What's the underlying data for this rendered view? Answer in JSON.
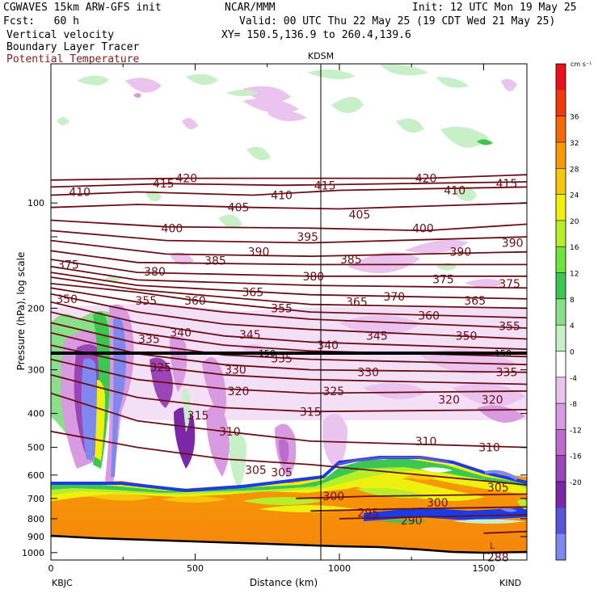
{
  "header": {
    "model": "CGWAVES 15km ARW-GFS init",
    "org": "NCAR/MMM",
    "init": "Init: 12 UTC Mon 19 May 25",
    "fcst": "Fcst:   60 h",
    "valid": "Valid: 00 UTC Thu 22 May 25 (19 CDT Wed 21 May 25)",
    "field1": "Vertical velocity",
    "field2": "Boundary Layer Tracer",
    "field3": "Potential Temperature",
    "xy": "XY= 150.5,136.9 to 260.4,139.6"
  },
  "colors": {
    "theta": "#6b0f16",
    "field3_text": "#8b1a1a",
    "tropopause": "#000000",
    "terrain": "#000000"
  },
  "chart_data": {
    "type": "heatmap",
    "xlabel": "Distance (km)",
    "ylabel": "Pressure (hPa), log scale",
    "xlim": [
      0,
      1650
    ],
    "ylim": [
      1050,
      40
    ],
    "y_scale": "log",
    "x_ticks": [
      {
        "v": 0,
        "label": "0"
      },
      {
        "v": 500,
        "label": "500"
      },
      {
        "v": 1000,
        "label": "1000"
      },
      {
        "v": 1500,
        "label": "1500"
      }
    ],
    "y_ticks": [
      {
        "v": 100,
        "label": "100"
      },
      {
        "v": 200,
        "label": "200"
      },
      {
        "v": 300,
        "label": "300"
      },
      {
        "v": 400,
        "label": "400"
      },
      {
        "v": 500,
        "label": "500"
      },
      {
        "v": 600,
        "label": "600"
      },
      {
        "v": 700,
        "label": "700"
      },
      {
        "v": 800,
        "label": "800"
      },
      {
        "v": 900,
        "label": "900"
      },
      {
        "v": 1000,
        "label": "1000"
      }
    ],
    "stations": {
      "left": "KBJC",
      "right": "KIND",
      "marker": "KDSM",
      "marker_x": 930
    },
    "colorbar": {
      "unit": "cm s⁻¹",
      "labels": [
        "36",
        "32",
        "28",
        "24",
        "20",
        "16",
        "12",
        "8",
        "4",
        "0",
        "-4",
        "-8",
        "-12",
        "-16",
        "-20"
      ],
      "colors": [
        "#e8101a",
        "#f23a0c",
        "#f56a08",
        "#f79a08",
        "#f7c60a",
        "#eef00e",
        "#b6ee2a",
        "#6fe43c",
        "#3cc850",
        "#8ae08a",
        "#c8f0c8",
        "#ffffff",
        "#eac4ee",
        "#d89ae0",
        "#bb6ccc",
        "#9a45b8",
        "#7a28a8",
        "#5a55d8",
        "#7e88ee"
      ]
    },
    "tropopause_labels": [
      "150",
      "150"
    ],
    "theta_contours": [
      {
        "label": "410",
        "pts": [
          [
            0,
            95
          ],
          [
            300,
            93
          ],
          [
            700,
            95
          ],
          [
            1000,
            92
          ],
          [
            1650,
            90
          ]
        ]
      },
      {
        "label": "415",
        "pts": [
          [
            0,
            90
          ],
          [
            400,
            88
          ],
          [
            800,
            89
          ],
          [
            1650,
            87
          ]
        ]
      },
      {
        "label": "420",
        "pts": [
          [
            0,
            86
          ],
          [
            450,
            85
          ],
          [
            1300,
            85
          ],
          [
            1650,
            83
          ]
        ]
      },
      {
        "label": "405",
        "pts": [
          [
            0,
            103
          ],
          [
            300,
            101
          ],
          [
            700,
            103
          ],
          [
            1000,
            104
          ],
          [
            1650,
            100
          ]
        ]
      },
      {
        "label": "400",
        "pts": [
          [
            0,
            112
          ],
          [
            400,
            117
          ],
          [
            900,
            118
          ],
          [
            1300,
            120
          ],
          [
            1650,
            115
          ]
        ]
      },
      {
        "label": "395",
        "pts": [
          [
            0,
            120
          ],
          [
            400,
            128
          ],
          [
            900,
            130
          ],
          [
            1650,
            125
          ]
        ]
      },
      {
        "label": "390",
        "pts": [
          [
            0,
            128
          ],
          [
            400,
            140
          ],
          [
            900,
            142
          ],
          [
            1650,
            138
          ]
        ]
      },
      {
        "label": "385",
        "pts": [
          [
            0,
            137
          ],
          [
            300,
            148
          ],
          [
            900,
            150
          ],
          [
            1650,
            150
          ]
        ]
      },
      {
        "label": "380",
        "pts": [
          [
            0,
            145
          ],
          [
            300,
            158
          ],
          [
            900,
            162
          ],
          [
            1650,
            162
          ]
        ]
      },
      {
        "label": "375",
        "pts": [
          [
            0,
            152
          ],
          [
            300,
            166
          ],
          [
            900,
            172
          ],
          [
            1650,
            175
          ]
        ]
      },
      {
        "label": "370",
        "pts": [
          [
            0,
            158
          ],
          [
            300,
            172
          ],
          [
            900,
            183
          ],
          [
            1650,
            188
          ]
        ]
      },
      {
        "label": "365",
        "pts": [
          [
            0,
            163
          ],
          [
            300,
            177
          ],
          [
            900,
            195
          ],
          [
            1650,
            200
          ]
        ]
      },
      {
        "label": "360",
        "pts": [
          [
            0,
            170
          ],
          [
            300,
            180
          ],
          [
            500,
            190
          ],
          [
            900,
            205
          ],
          [
            1650,
            213
          ]
        ]
      },
      {
        "label": "355",
        "pts": [
          [
            0,
            175
          ],
          [
            300,
            192
          ],
          [
            600,
            205
          ],
          [
            900,
            215
          ],
          [
            1650,
            228
          ]
        ]
      },
      {
        "label": "350",
        "pts": [
          [
            0,
            182
          ],
          [
            300,
            205
          ],
          [
            600,
            222
          ],
          [
            900,
            230
          ],
          [
            1650,
            245
          ]
        ]
      },
      {
        "label": "345",
        "pts": [
          [
            0,
            192
          ],
          [
            300,
            220
          ],
          [
            600,
            240
          ],
          [
            900,
            250
          ],
          [
            1650,
            262
          ]
        ]
      },
      {
        "label": "340",
        "pts": [
          [
            0,
            205
          ],
          [
            300,
            235
          ],
          [
            600,
            255
          ],
          [
            900,
            265
          ],
          [
            1650,
            275
          ]
        ]
      },
      {
        "label": "335",
        "pts": [
          [
            0,
            220
          ],
          [
            300,
            252
          ],
          [
            600,
            272
          ],
          [
            900,
            280
          ],
          [
            1650,
            290
          ]
        ]
      },
      {
        "label": "330",
        "pts": [
          [
            0,
            235
          ],
          [
            300,
            270
          ],
          [
            600,
            290
          ],
          [
            900,
            300
          ],
          [
            1650,
            305
          ]
        ]
      },
      {
        "label": "325",
        "pts": [
          [
            0,
            255
          ],
          [
            300,
            290
          ],
          [
            600,
            310
          ],
          [
            900,
            320
          ],
          [
            1650,
            330
          ]
        ]
      },
      {
        "label": "320",
        "pts": [
          [
            0,
            280
          ],
          [
            300,
            320
          ],
          [
            600,
            340
          ],
          [
            900,
            350
          ],
          [
            1650,
            345
          ]
        ]
      },
      {
        "label": "315",
        "pts": [
          [
            0,
            310
          ],
          [
            300,
            360
          ],
          [
            600,
            385
          ],
          [
            900,
            395
          ],
          [
            1650,
            390
          ]
        ]
      },
      {
        "label": "310",
        "pts": [
          [
            0,
            350
          ],
          [
            300,
            420
          ],
          [
            600,
            450
          ],
          [
            900,
            480
          ],
          [
            1650,
            500
          ]
        ]
      },
      {
        "label": "305",
        "pts": [
          [
            0,
            450
          ],
          [
            300,
            500
          ],
          [
            600,
            540
          ],
          [
            900,
            560
          ],
          [
            1650,
            640
          ]
        ]
      },
      {
        "label": "300",
        "pts": [
          [
            850,
            700
          ],
          [
            1100,
            690
          ],
          [
            1650,
            680
          ]
        ]
      },
      {
        "label": "295",
        "pts": [
          [
            900,
            760
          ],
          [
            1200,
            750
          ],
          [
            1650,
            740
          ]
        ]
      },
      {
        "label": "290",
        "pts": [
          [
            1000,
            800
          ],
          [
            1300,
            790
          ],
          [
            1650,
            780
          ]
        ]
      },
      {
        "label": "288",
        "pts": [
          [
            1500,
            880
          ],
          [
            1650,
            870
          ]
        ]
      }
    ],
    "contour_label_positions": [
      {
        "t": "410",
        "x": 100,
        "p": 93
      },
      {
        "t": "415",
        "x": 390,
        "p": 88
      },
      {
        "t": "420",
        "x": 470,
        "p": 85
      },
      {
        "t": "410",
        "x": 800,
        "p": 95
      },
      {
        "t": "415",
        "x": 950,
        "p": 89
      },
      {
        "t": "420",
        "x": 1300,
        "p": 85
      },
      {
        "t": "410",
        "x": 1400,
        "p": 92
      },
      {
        "t": "415",
        "x": 1580,
        "p": 88
      },
      {
        "t": "405",
        "x": 650,
        "p": 103
      },
      {
        "t": "405",
        "x": 1070,
        "p": 108
      },
      {
        "t": "400",
        "x": 420,
        "p": 118
      },
      {
        "t": "400",
        "x": 1290,
        "p": 118
      },
      {
        "t": "395",
        "x": 890,
        "p": 125
      },
      {
        "t": "390",
        "x": 720,
        "p": 138
      },
      {
        "t": "390",
        "x": 1420,
        "p": 138
      },
      {
        "t": "390",
        "x": 1600,
        "p": 130
      },
      {
        "t": "385",
        "x": 570,
        "p": 146
      },
      {
        "t": "385",
        "x": 1040,
        "p": 145
      },
      {
        "t": "380",
        "x": 360,
        "p": 157
      },
      {
        "t": "380",
        "x": 910,
        "p": 162
      },
      {
        "t": "375",
        "x": 60,
        "p": 150
      },
      {
        "t": "375",
        "x": 1360,
        "p": 165
      },
      {
        "t": "375",
        "x": 1590,
        "p": 170
      },
      {
        "t": "370",
        "x": 1190,
        "p": 185
      },
      {
        "t": "365",
        "x": 700,
        "p": 180
      },
      {
        "t": "365",
        "x": 1060,
        "p": 192
      },
      {
        "t": "365",
        "x": 1470,
        "p": 190
      },
      {
        "t": "360",
        "x": 500,
        "p": 190
      },
      {
        "t": "360",
        "x": 1310,
        "p": 210
      },
      {
        "t": "355",
        "x": 330,
        "p": 190
      },
      {
        "t": "355",
        "x": 800,
        "p": 200
      },
      {
        "t": "355",
        "x": 1590,
        "p": 225
      },
      {
        "t": "350",
        "x": 55,
        "p": 188
      },
      {
        "t": "350",
        "x": 1440,
        "p": 240
      },
      {
        "t": "345",
        "x": 690,
        "p": 238
      },
      {
        "t": "345",
        "x": 1130,
        "p": 240
      },
      {
        "t": "340",
        "x": 450,
        "p": 235
      },
      {
        "t": "340",
        "x": 960,
        "p": 255
      },
      {
        "t": "335",
        "x": 340,
        "p": 245
      },
      {
        "t": "335",
        "x": 800,
        "p": 278
      },
      {
        "t": "335",
        "x": 1580,
        "p": 305
      },
      {
        "t": "330",
        "x": 640,
        "p": 300
      },
      {
        "t": "330",
        "x": 1100,
        "p": 305
      },
      {
        "t": "325",
        "x": 380,
        "p": 295
      },
      {
        "t": "325",
        "x": 980,
        "p": 345
      },
      {
        "t": "320",
        "x": 650,
        "p": 345
      },
      {
        "t": "320",
        "x": 1380,
        "p": 365
      },
      {
        "t": "320",
        "x": 1530,
        "p": 365
      },
      {
        "t": "315",
        "x": 510,
        "p": 405
      },
      {
        "t": "315",
        "x": 900,
        "p": 395
      },
      {
        "t": "310",
        "x": 620,
        "p": 450
      },
      {
        "t": "310",
        "x": 1300,
        "p": 480
      },
      {
        "t": "310",
        "x": 1520,
        "p": 500
      },
      {
        "t": "305",
        "x": 710,
        "p": 580
      },
      {
        "t": "305",
        "x": 800,
        "p": 590
      },
      {
        "t": "305",
        "x": 1550,
        "p": 650
      },
      {
        "t": "300",
        "x": 980,
        "p": 690
      },
      {
        "t": "300",
        "x": 1340,
        "p": 720
      },
      {
        "t": "295",
        "x": 1100,
        "p": 770
      },
      {
        "t": "290",
        "x": 1250,
        "p": 810
      },
      {
        "t": "288",
        "x": 1550,
        "p": 1030
      }
    ],
    "low_label": "L"
  }
}
